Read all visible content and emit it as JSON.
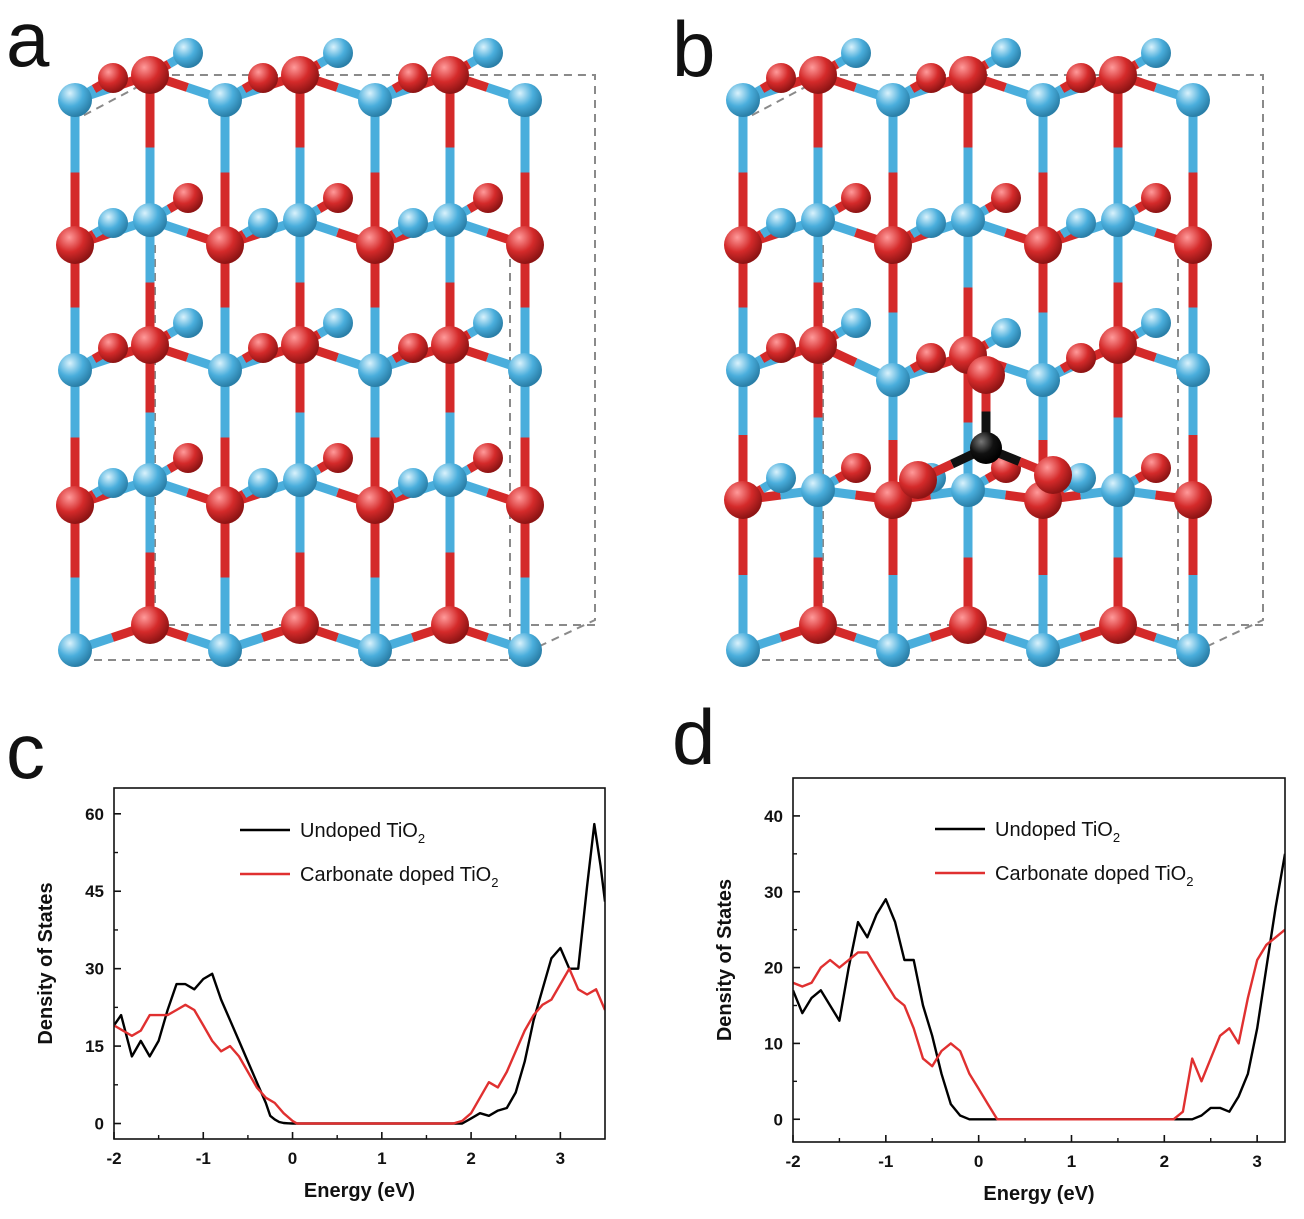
{
  "panels": {
    "a": "a",
    "b": "b",
    "c": "c",
    "d": "d"
  },
  "colors": {
    "ti_atom": "#4aaedc",
    "o_atom": "#d42a2a",
    "c_atom": "#111111",
    "undoped": "#000000",
    "doped": "#e03030"
  },
  "chart_data": [
    {
      "type": "line",
      "panel": "c",
      "xlabel": "Energy (eV)",
      "ylabel": "Density of States",
      "xlim": [
        -2,
        3.5
      ],
      "ylim": [
        -3,
        65
      ],
      "xticks": [
        -2,
        -1,
        0,
        1,
        2,
        3
      ],
      "yticks": [
        0,
        15,
        30,
        45,
        60
      ],
      "legend_position": "top-right",
      "series": [
        {
          "name": "Undoped TiO",
          "name_sub": "2",
          "color": "#000000",
          "x": [
            -2.0,
            -1.92,
            -1.8,
            -1.7,
            -1.6,
            -1.5,
            -1.4,
            -1.3,
            -1.2,
            -1.1,
            -1.0,
            -0.9,
            -0.8,
            -0.7,
            -0.6,
            -0.5,
            -0.4,
            -0.3,
            -0.25,
            -0.2,
            -0.15,
            -0.1,
            -0.05,
            0.0,
            0.5,
            1.0,
            1.5,
            1.9,
            2.0,
            2.1,
            2.2,
            2.3,
            2.4,
            2.5,
            2.6,
            2.7,
            2.8,
            2.9,
            3.0,
            3.1,
            3.2,
            3.3,
            3.38,
            3.45,
            3.5
          ],
          "y": [
            19,
            21,
            13,
            16,
            13,
            16,
            22,
            27,
            27,
            26,
            28,
            29,
            24,
            20,
            16,
            12,
            8,
            4,
            1.5,
            0.8,
            0.3,
            0.1,
            0.05,
            0,
            0,
            0,
            0,
            0,
            1,
            2,
            1.5,
            2.5,
            3,
            6,
            12,
            20,
            26,
            32,
            34,
            30,
            30,
            46,
            58,
            50,
            43
          ]
        },
        {
          "name": "Carbonate doped TiO",
          "name_sub": "2",
          "color": "#e03030",
          "x": [
            -2.0,
            -1.9,
            -1.8,
            -1.7,
            -1.6,
            -1.5,
            -1.4,
            -1.3,
            -1.2,
            -1.1,
            -1.0,
            -0.9,
            -0.8,
            -0.7,
            -0.6,
            -0.5,
            -0.4,
            -0.3,
            -0.2,
            -0.1,
            0.0,
            0.05,
            0.1,
            0.5,
            1.0,
            1.5,
            1.8,
            1.9,
            2.0,
            2.1,
            2.2,
            2.3,
            2.4,
            2.5,
            2.6,
            2.7,
            2.8,
            2.9,
            3.0,
            3.1,
            3.2,
            3.3,
            3.4,
            3.5
          ],
          "y": [
            19,
            18,
            17,
            18,
            21,
            21,
            21,
            22,
            23,
            22,
            19,
            16,
            14,
            15,
            13,
            10,
            7,
            5,
            4,
            2,
            0.5,
            0,
            0,
            0,
            0,
            0,
            0,
            0.5,
            2,
            5,
            8,
            7,
            10,
            14,
            18,
            21,
            23,
            24,
            27,
            30,
            26,
            25,
            26,
            22
          ]
        }
      ]
    },
    {
      "type": "line",
      "panel": "d",
      "xlabel": "Energy (eV)",
      "ylabel": "Density of States",
      "xlim": [
        -2,
        3.3
      ],
      "ylim": [
        -3,
        45
      ],
      "xticks": [
        -2,
        -1,
        0,
        1,
        2,
        3
      ],
      "yticks": [
        0,
        10,
        20,
        30,
        40
      ],
      "legend_position": "top-right",
      "series": [
        {
          "name": "Undoped TiO",
          "name_sub": "2",
          "color": "#000000",
          "x": [
            -2.0,
            -1.9,
            -1.8,
            -1.7,
            -1.6,
            -1.5,
            -1.4,
            -1.3,
            -1.2,
            -1.1,
            -1.0,
            -0.9,
            -0.8,
            -0.7,
            -0.6,
            -0.5,
            -0.4,
            -0.3,
            -0.2,
            -0.1,
            0.0,
            0.5,
            1.0,
            1.5,
            2.0,
            2.2,
            2.3,
            2.4,
            2.5,
            2.6,
            2.7,
            2.8,
            2.9,
            3.0,
            3.1,
            3.2,
            3.3
          ],
          "y": [
            17,
            14,
            16,
            17,
            15,
            13,
            20,
            26,
            24,
            27,
            29,
            26,
            21,
            21,
            15,
            11,
            6,
            2,
            0.5,
            0,
            0,
            0,
            0,
            0,
            0,
            0,
            0,
            0.5,
            1.5,
            1.5,
            1,
            3,
            6,
            12,
            20,
            28,
            35
          ]
        },
        {
          "name": "Carbonate doped TiO",
          "name_sub": "2",
          "color": "#e03030",
          "x": [
            -2.0,
            -1.9,
            -1.8,
            -1.7,
            -1.6,
            -1.5,
            -1.4,
            -1.3,
            -1.2,
            -1.1,
            -1.0,
            -0.9,
            -0.8,
            -0.7,
            -0.6,
            -0.5,
            -0.4,
            -0.3,
            -0.2,
            -0.1,
            0.0,
            0.1,
            0.2,
            0.3,
            0.5,
            1.0,
            1.5,
            2.0,
            2.1,
            2.2,
            2.3,
            2.4,
            2.5,
            2.6,
            2.7,
            2.8,
            2.9,
            3.0,
            3.1,
            3.2,
            3.3
          ],
          "y": [
            18,
            17.5,
            18,
            20,
            21,
            20,
            21,
            22,
            22,
            20,
            18,
            16,
            15,
            12,
            8,
            7,
            9,
            10,
            9,
            6,
            4,
            2,
            0,
            0,
            0,
            0,
            0,
            0,
            0,
            1,
            8,
            5,
            8,
            11,
            12,
            10,
            16,
            21,
            23,
            24,
            25
          ]
        }
      ]
    }
  ]
}
